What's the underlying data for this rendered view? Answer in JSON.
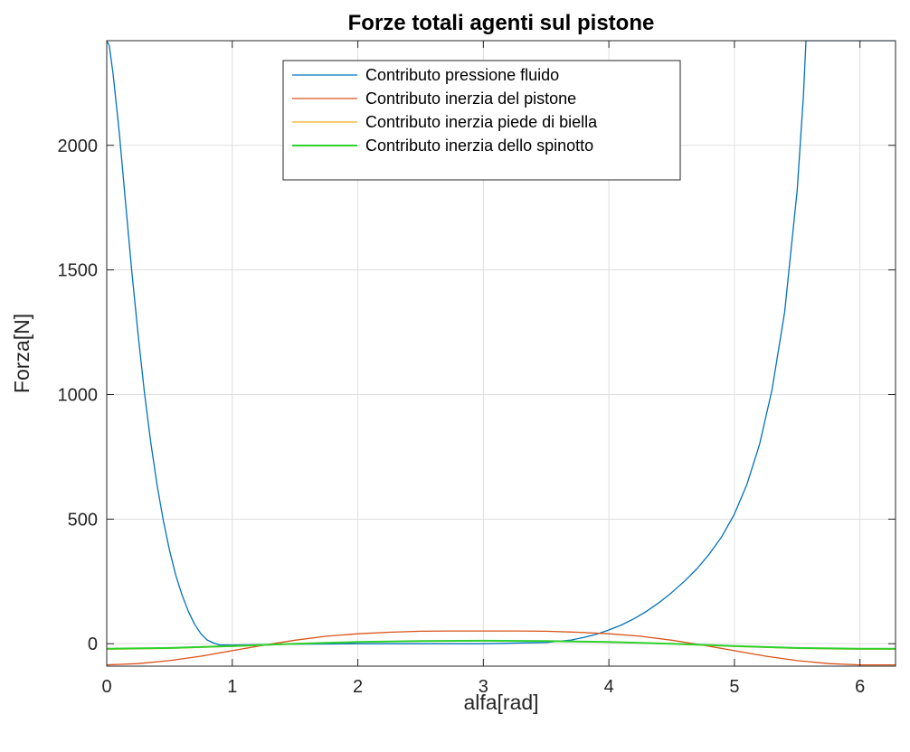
{
  "chart_data": {
    "type": "line",
    "title": "Forze totali agenti sul pistone",
    "xlabel": "alfa[rad]",
    "ylabel": "Forza[N]",
    "xlim": [
      0,
      6.2832
    ],
    "ylim": [
      -90,
      2420
    ],
    "xticks": [
      0,
      1,
      2,
      3,
      4,
      5,
      6
    ],
    "yticks": [
      0,
      500,
      1000,
      1500,
      2000
    ],
    "xtick_labels": [
      "0",
      "1",
      "2",
      "3",
      "4",
      "5",
      "6"
    ],
    "ytick_labels": [
      "0",
      "500",
      "1000",
      "1500",
      "2000"
    ],
    "grid": true,
    "legend_position": "top-center",
    "series": [
      {
        "name": "Contributo pressione fluido",
        "color": "#0072BD",
        "x": [
          0,
          0.02,
          0.05,
          0.1,
          0.15,
          0.2,
          0.25,
          0.3,
          0.35,
          0.4,
          0.45,
          0.5,
          0.55,
          0.6,
          0.65,
          0.7,
          0.75,
          0.8,
          0.85,
          0.9,
          1.0,
          1.5,
          2.0,
          2.5,
          3.0,
          3.5,
          3.7,
          3.8,
          3.9,
          4.0,
          4.1,
          4.2,
          4.3,
          4.4,
          4.5,
          4.6,
          4.7,
          4.8,
          4.9,
          5.0,
          5.1,
          5.2,
          5.3,
          5.4,
          5.5,
          5.55,
          5.57,
          5.6,
          5.8,
          6.0,
          6.2,
          6.2832
        ],
        "y": [
          2420,
          2400,
          2290,
          2050,
          1770,
          1490,
          1240,
          1010,
          810,
          640,
          495,
          375,
          275,
          195,
          130,
          78,
          40,
          15,
          3,
          -5,
          -5,
          -2,
          0,
          0,
          0,
          5,
          15,
          25,
          38,
          55,
          75,
          100,
          130,
          165,
          205,
          250,
          300,
          360,
          430,
          520,
          640,
          800,
          1020,
          1330,
          1820,
          2200,
          2420,
          2420,
          2420,
          2420,
          2420,
          2420
        ]
      },
      {
        "name": "Contributo inerzia del pistone",
        "color": "#D95319",
        "x": [
          0,
          0.25,
          0.5,
          0.75,
          1.0,
          1.25,
          1.5,
          1.75,
          2.0,
          2.25,
          2.5,
          2.75,
          3.0,
          3.25,
          3.5,
          3.75,
          4.0,
          4.25,
          4.5,
          4.75,
          5.0,
          5.25,
          5.5,
          5.75,
          6.0,
          6.2832
        ],
        "y": [
          -85,
          -80,
          -68,
          -50,
          -28,
          -6,
          14,
          30,
          40,
          46,
          50,
          51,
          51,
          51,
          50,
          46,
          40,
          30,
          14,
          -6,
          -28,
          -50,
          -68,
          -80,
          -85,
          -85
        ]
      },
      {
        "name": "Contributo inerzia piede di biella",
        "color": "#EDB120",
        "x": [
          0,
          0.5,
          1.0,
          1.5,
          2.0,
          2.5,
          3.0,
          3.5,
          4.0,
          4.5,
          5.0,
          5.5,
          6.0,
          6.2832
        ],
        "y": [
          -22,
          -19,
          -11,
          -1,
          6,
          10,
          11,
          10,
          6,
          -1,
          -11,
          -19,
          -22,
          -22
        ]
      },
      {
        "name": "Contributo inerzia dello spinotto",
        "color": "#2ED12E",
        "x": [
          0,
          0.5,
          1.0,
          1.5,
          2.0,
          2.5,
          3.0,
          3.5,
          4.0,
          4.5,
          5.0,
          5.5,
          6.0,
          6.2832
        ],
        "y": [
          -20,
          -17,
          -9,
          0,
          7,
          11,
          12,
          11,
          7,
          0,
          -9,
          -17,
          -20,
          -20
        ]
      }
    ]
  }
}
